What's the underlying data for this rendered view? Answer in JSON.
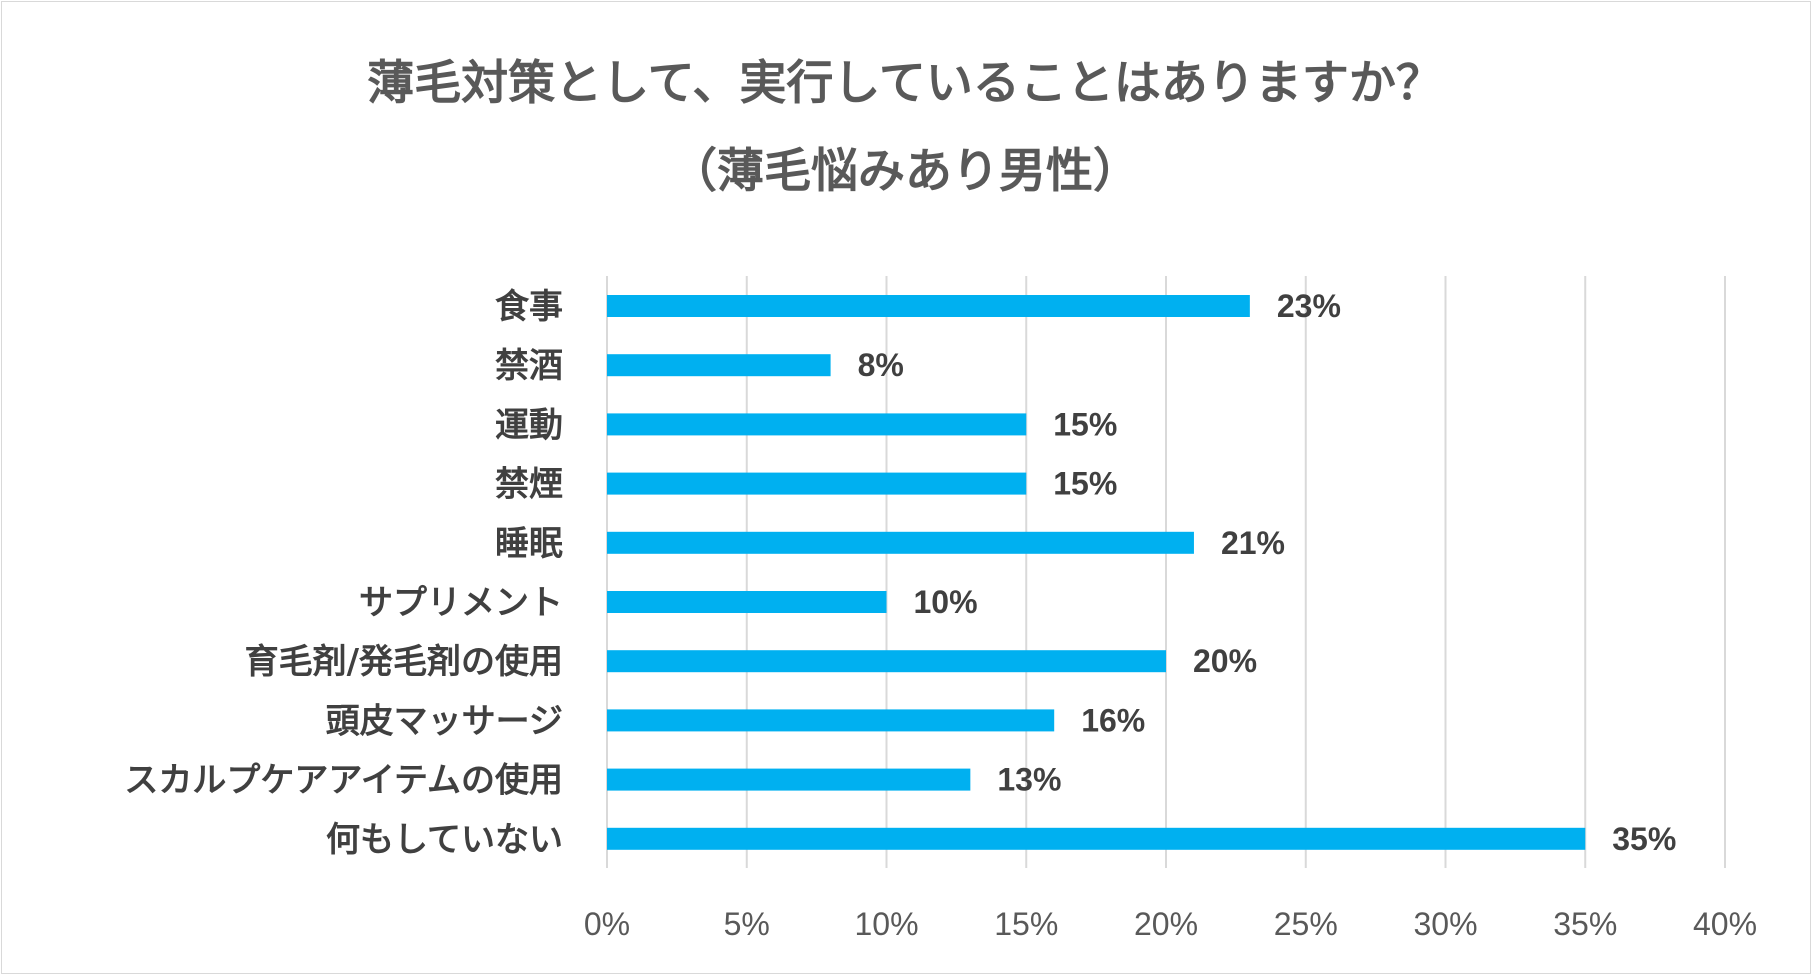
{
  "chart_data": {
    "type": "bar",
    "orientation": "horizontal",
    "title": "薄毛対策として、実行していることはありますか？",
    "subtitle": "（薄毛悩みあり男性）",
    "categories": [
      "食事",
      "禁酒",
      "運動",
      "禁煙",
      "睡眠",
      "サプリメント",
      "育毛剤/発毛剤の使用",
      "頭皮マッサージ",
      "スカルプケアアイテムの使用",
      "何もしていない"
    ],
    "values": [
      23,
      8,
      15,
      15,
      21,
      10,
      20,
      16,
      13,
      35
    ],
    "value_labels": [
      "23%",
      "8%",
      "15%",
      "15%",
      "21%",
      "10%",
      "20%",
      "16%",
      "13%",
      "35%"
    ],
    "xlim": [
      0,
      40
    ],
    "x_ticks": [
      0,
      5,
      10,
      15,
      20,
      25,
      30,
      35,
      40
    ],
    "x_tick_labels": [
      "0%",
      "5%",
      "10%",
      "15%",
      "20%",
      "25%",
      "30%",
      "35%",
      "40%"
    ],
    "xlabel": "",
    "ylabel": "",
    "grid": "vertical",
    "legend": "none",
    "bar_color": "#00b0f0"
  }
}
